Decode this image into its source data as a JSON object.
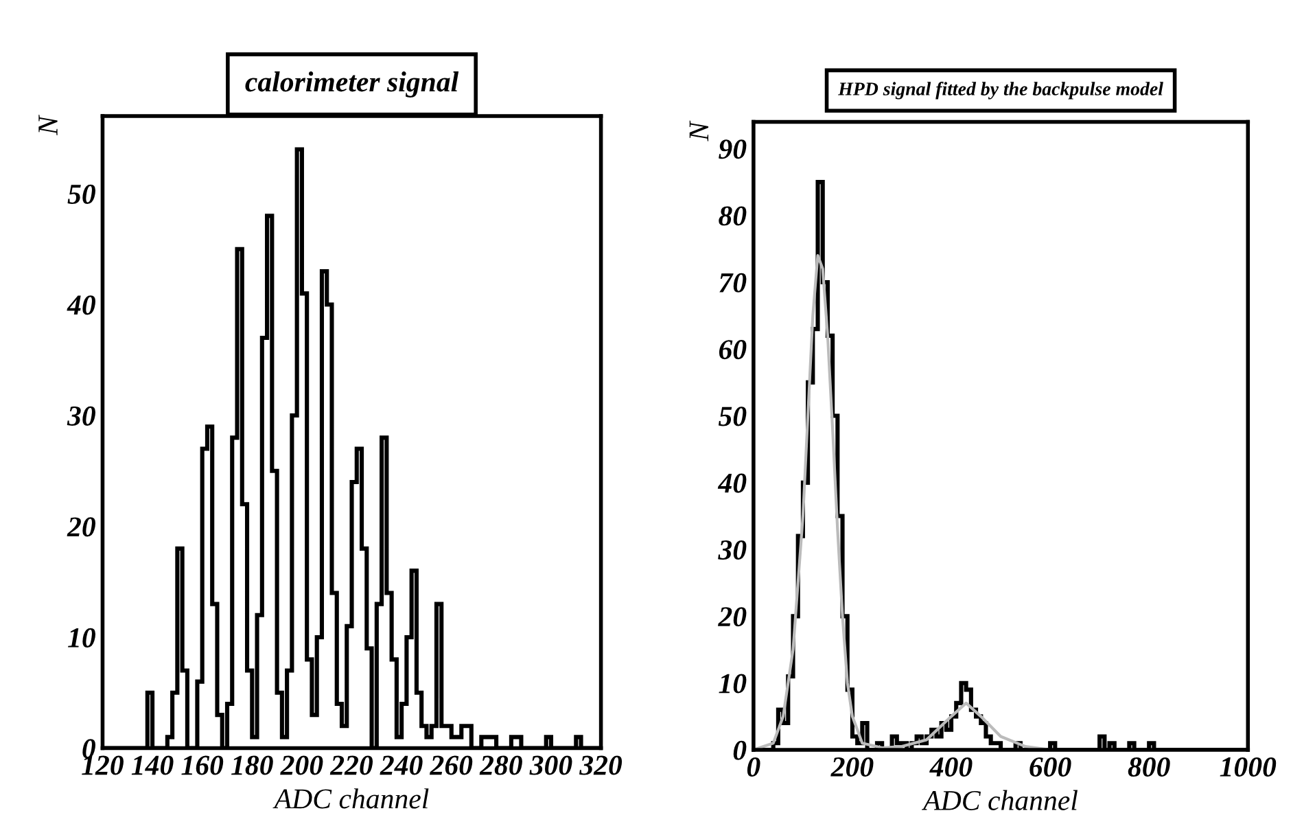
{
  "chart_data": [
    {
      "type": "histogram",
      "title": "calorimeter signal",
      "xlabel": "ADC channel",
      "ylabel": "N",
      "bins": [
        120,
        122,
        124,
        126,
        128,
        130,
        132,
        134,
        136,
        138,
        140,
        142,
        144,
        146,
        148,
        150,
        152,
        154,
        156,
        158,
        160,
        162,
        164,
        166,
        168,
        170,
        172,
        174,
        176,
        178,
        180,
        182,
        184,
        186,
        188,
        190,
        192,
        194,
        196,
        198,
        200,
        202,
        204,
        206,
        208,
        210,
        212,
        214,
        216,
        218,
        220,
        222,
        224,
        226,
        228,
        230,
        232,
        234,
        236,
        238,
        240,
        242,
        244,
        246,
        248,
        250,
        252,
        254,
        256,
        258,
        260,
        262,
        264,
        266,
        268,
        270,
        272,
        274,
        276,
        278,
        280,
        282,
        284,
        286,
        288,
        290,
        292,
        294,
        296,
        298,
        300,
        302,
        304,
        306,
        308,
        310,
        312,
        314,
        316,
        318,
        320
      ],
      "values": [
        0,
        0,
        0,
        0,
        0,
        0,
        0,
        0,
        0,
        5,
        0,
        0,
        0,
        1,
        5,
        18,
        7,
        0,
        0,
        6,
        27,
        29,
        13,
        3,
        0,
        4,
        28,
        45,
        22,
        7,
        1,
        12,
        37,
        48,
        25,
        5,
        1,
        7,
        30,
        54,
        41,
        8,
        3,
        10,
        43,
        40,
        14,
        4,
        2,
        11,
        24,
        27,
        18,
        9,
        0,
        13,
        28,
        14,
        8,
        1,
        4,
        10,
        16,
        5,
        2,
        1,
        2,
        13,
        2,
        2,
        1,
        1,
        2,
        2,
        0,
        0,
        1,
        1,
        1,
        0,
        0,
        0,
        1,
        1,
        0,
        0,
        0,
        0,
        0,
        1,
        0,
        0,
        0,
        0,
        0,
        1,
        0,
        0,
        0,
        0
      ],
      "color": "#000000",
      "xlim": [
        120,
        320
      ],
      "ylim": [
        0,
        57
      ],
      "xticks": [
        120,
        140,
        160,
        180,
        200,
        220,
        240,
        260,
        280,
        300,
        320
      ],
      "yticks": [
        0,
        10,
        20,
        30,
        40,
        50
      ],
      "grid": false
    },
    {
      "type": "histogram",
      "title": "HPD signal fitted by the backpulse model",
      "xlabel": "ADC channel",
      "ylabel": "N",
      "bins": [
        0,
        10,
        20,
        30,
        40,
        50,
        60,
        70,
        80,
        90,
        100,
        110,
        120,
        130,
        140,
        150,
        160,
        170,
        180,
        190,
        200,
        210,
        220,
        230,
        240,
        250,
        260,
        270,
        280,
        290,
        300,
        310,
        320,
        330,
        340,
        350,
        360,
        370,
        380,
        390,
        400,
        410,
        420,
        430,
        440,
        450,
        460,
        470,
        480,
        490,
        500,
        510,
        520,
        530,
        540,
        550,
        560,
        570,
        580,
        590,
        600,
        610,
        620,
        630,
        640,
        650,
        660,
        670,
        680,
        690,
        700,
        710,
        720,
        730,
        740,
        750,
        760,
        770,
        780,
        790,
        800,
        810,
        820,
        830,
        840,
        850,
        860,
        870,
        880,
        890,
        900,
        910,
        920,
        930,
        940,
        950,
        960,
        970,
        980,
        990,
        1000
      ],
      "series": [
        {
          "type": "histogram",
          "color": "#000000",
          "values": [
            0,
            0,
            0,
            0,
            1,
            6,
            4,
            11,
            20,
            32,
            40,
            55,
            63,
            85,
            70,
            62,
            50,
            35,
            20,
            9,
            2,
            1,
            4,
            0,
            0,
            1,
            0,
            0,
            2,
            1,
            1,
            0,
            1,
            2,
            1,
            2,
            3,
            2,
            4,
            3,
            5,
            7,
            10,
            9,
            6,
            5,
            4,
            2,
            1,
            1,
            0,
            0,
            0,
            1,
            0,
            0,
            0,
            0,
            0,
            0,
            1,
            0,
            0,
            0,
            0,
            0,
            0,
            0,
            0,
            0,
            2,
            0,
            1,
            0,
            0,
            0,
            1,
            0,
            0,
            0,
            1,
            0,
            0,
            0,
            0,
            0,
            0,
            0,
            0,
            0,
            0,
            0,
            0,
            0,
            0,
            0,
            0,
            0,
            0,
            0
          ]
        },
        {
          "type": "line",
          "color": "#bbbbbb",
          "x": [
            0,
            40,
            60,
            80,
            100,
            110,
            120,
            130,
            140,
            150,
            160,
            170,
            180,
            190,
            200,
            220,
            260,
            300,
            350,
            400,
            430,
            460,
            500,
            550,
            600,
            1000
          ],
          "values": [
            0,
            1,
            5,
            15,
            35,
            50,
            65,
            74,
            72,
            62,
            48,
            33,
            20,
            10,
            5,
            1,
            0.3,
            0.5,
            1.5,
            5,
            7,
            5,
            2,
            0.5,
            0,
            0
          ]
        }
      ],
      "xlim": [
        0,
        1000
      ],
      "ylim": [
        0,
        94
      ],
      "xticks": [
        0,
        200,
        400,
        600,
        800,
        1000
      ],
      "yticks": [
        0,
        10,
        20,
        30,
        40,
        50,
        60,
        70,
        80,
        90
      ],
      "grid": false
    }
  ]
}
